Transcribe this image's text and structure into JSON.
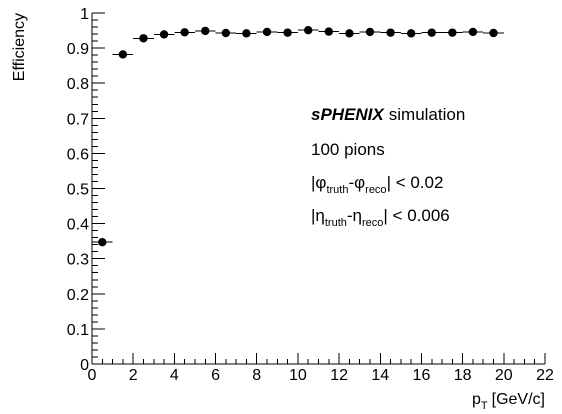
{
  "chart_data": {
    "type": "scatter",
    "title": "",
    "xlabel": {
      "main": "p",
      "sub": "T",
      "unit": "[GeV/c]"
    },
    "ylabel": "Efficiency",
    "xlim": [
      0,
      22
    ],
    "ylim": [
      0,
      1
    ],
    "x_ticks": [
      {
        "value": 0,
        "label": "0"
      },
      {
        "value": 2,
        "label": "2"
      },
      {
        "value": 4,
        "label": "4"
      },
      {
        "value": 6,
        "label": "6"
      },
      {
        "value": 8,
        "label": "8"
      },
      {
        "value": 10,
        "label": "10"
      },
      {
        "value": 12,
        "label": "12"
      },
      {
        "value": 14,
        "label": "14"
      },
      {
        "value": 16,
        "label": "16"
      },
      {
        "value": 18,
        "label": "18"
      },
      {
        "value": 20,
        "label": "20"
      },
      {
        "value": 22,
        "label": "22"
      }
    ],
    "y_ticks": [
      {
        "value": 0,
        "label": "0"
      },
      {
        "value": 0.1,
        "label": "0.1"
      },
      {
        "value": 0.2,
        "label": "0.2"
      },
      {
        "value": 0.3,
        "label": "0.3"
      },
      {
        "value": 0.4,
        "label": "0.4"
      },
      {
        "value": 0.5,
        "label": "0.5"
      },
      {
        "value": 0.6,
        "label": "0.6"
      },
      {
        "value": 0.7,
        "label": "0.7"
      },
      {
        "value": 0.8,
        "label": "0.8"
      },
      {
        "value": 0.9,
        "label": "0.9"
      },
      {
        "value": 1,
        "label": "1"
      }
    ],
    "x": [
      0.5,
      1.5,
      2.5,
      3.5,
      4.5,
      5.5,
      6.5,
      7.5,
      8.5,
      9.5,
      10.5,
      11.5,
      12.5,
      13.5,
      14.5,
      15.5,
      16.5,
      17.5,
      18.5,
      19.5
    ],
    "y": [
      0.347,
      0.882,
      0.928,
      0.939,
      0.945,
      0.949,
      0.943,
      0.942,
      0.946,
      0.944,
      0.951,
      0.947,
      0.942,
      0.946,
      0.944,
      0.942,
      0.944,
      0.944,
      0.946,
      0.943
    ],
    "xerr": [
      0.5,
      0.5,
      0.5,
      0.5,
      0.5,
      0.5,
      0.5,
      0.5,
      0.5,
      0.5,
      0.5,
      0.5,
      0.5,
      0.5,
      0.5,
      0.5,
      0.5,
      0.5,
      0.5,
      0.5
    ],
    "annotations": {
      "line1": {
        "brand": "sPHENIX",
        "rest": "simulation"
      },
      "line2": "100 pions",
      "line3": {
        "pre": "|φ",
        "sub1": "truth",
        "mid": "-φ",
        "sub2": "reco",
        "post": "| < 0.02"
      },
      "line4": {
        "pre": "|η",
        "sub1": "truth",
        "mid": "-η",
        "sub2": "reco",
        "post": "| < 0.006"
      }
    },
    "grid": false
  }
}
